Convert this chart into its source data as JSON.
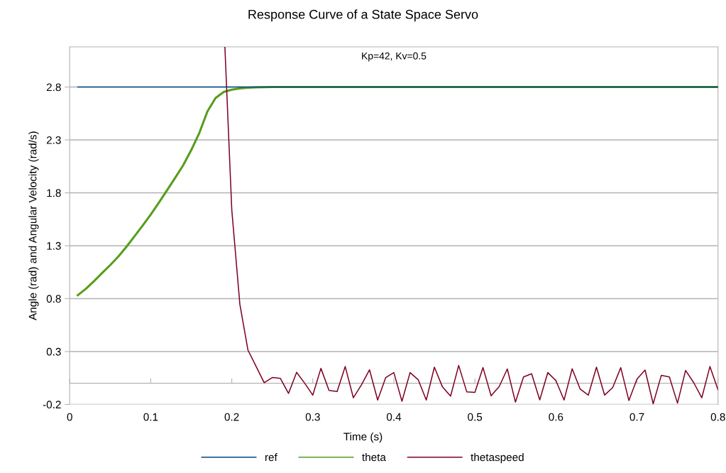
{
  "chart_data": {
    "type": "line",
    "title": "Response Curve of a State Space Servo",
    "xlabel": "Time (s)",
    "ylabel": "Angle (rad) and Angular Velocity (rad/s)",
    "annotations": [
      "Kp=42, Kv=0.5"
    ],
    "xlim": [
      0,
      0.8
    ],
    "xticks": [
      0,
      0.1,
      0.2,
      0.3,
      0.4,
      0.5,
      0.6,
      0.7,
      0.8
    ],
    "ylim": [
      -0.2,
      3.18
    ],
    "yticks": [
      -0.2,
      0.3,
      0.8,
      1.3,
      1.8,
      2.3,
      2.8
    ],
    "grid": "y",
    "legend": "bottom",
    "marker": "none",
    "line_style": "solid",
    "series": [
      {
        "name": "ref",
        "color": "#004586",
        "x": [
          0.01,
          0.8
        ],
        "values": [
          2.8,
          2.8
        ]
      },
      {
        "name": "theta",
        "color": "#579d1c",
        "x": [
          0.01,
          0.02,
          0.03,
          0.04,
          0.05,
          0.06,
          0.07,
          0.08,
          0.09,
          0.1,
          0.11,
          0.12,
          0.13,
          0.14,
          0.15,
          0.16,
          0.17,
          0.18,
          0.19,
          0.2,
          0.21,
          0.22,
          0.23,
          0.24,
          0.25,
          0.8
        ],
        "values": [
          0.832,
          0.893,
          0.965,
          1.042,
          1.117,
          1.198,
          1.29,
          1.39,
          1.49,
          1.595,
          1.707,
          1.823,
          1.94,
          2.06,
          2.204,
          2.367,
          2.57,
          2.696,
          2.753,
          2.775,
          2.787,
          2.793,
          2.797,
          2.799,
          2.8,
          2.8
        ]
      },
      {
        "name": "thetaspeed",
        "color": "#7e0021",
        "x": [
          0.1915,
          0.2,
          0.21,
          0.22,
          0.23,
          0.24,
          0.25,
          0.26,
          0.27,
          0.28,
          0.29,
          0.3,
          0.31,
          0.32,
          0.33,
          0.34,
          0.35,
          0.36,
          0.37,
          0.38,
          0.39,
          0.4,
          0.41,
          0.42,
          0.43,
          0.44,
          0.45,
          0.46,
          0.47,
          0.48,
          0.49,
          0.5,
          0.51,
          0.52,
          0.53,
          0.54,
          0.55,
          0.56,
          0.57,
          0.58,
          0.59,
          0.6,
          0.61,
          0.62,
          0.63,
          0.64,
          0.65,
          0.66,
          0.67,
          0.68,
          0.69,
          0.7,
          0.71,
          0.72,
          0.73,
          0.74,
          0.75,
          0.76,
          0.77,
          0.78,
          0.79,
          0.8
        ],
        "values": [
          3.18,
          1.64,
          0.745,
          0.313,
          0.16,
          0.005,
          0.054,
          0.046,
          -0.096,
          0.103,
          0.0,
          -0.112,
          0.141,
          -0.068,
          -0.078,
          0.158,
          -0.137,
          -0.015,
          0.127,
          -0.159,
          0.054,
          0.101,
          -0.17,
          0.101,
          0.034,
          -0.159,
          0.152,
          -0.035,
          -0.122,
          0.168,
          -0.082,
          -0.086,
          0.148,
          -0.118,
          -0.031,
          0.135,
          -0.178,
          0.06,
          0.09,
          -0.157,
          0.101,
          0.024,
          -0.159,
          0.137,
          -0.056,
          -0.112,
          0.152,
          -0.112,
          -0.041,
          0.148,
          -0.163,
          0.04,
          0.125,
          -0.194,
          0.074,
          0.06,
          -0.188,
          0.121,
          0.006,
          -0.137,
          0.158,
          -0.062
        ]
      }
    ]
  }
}
